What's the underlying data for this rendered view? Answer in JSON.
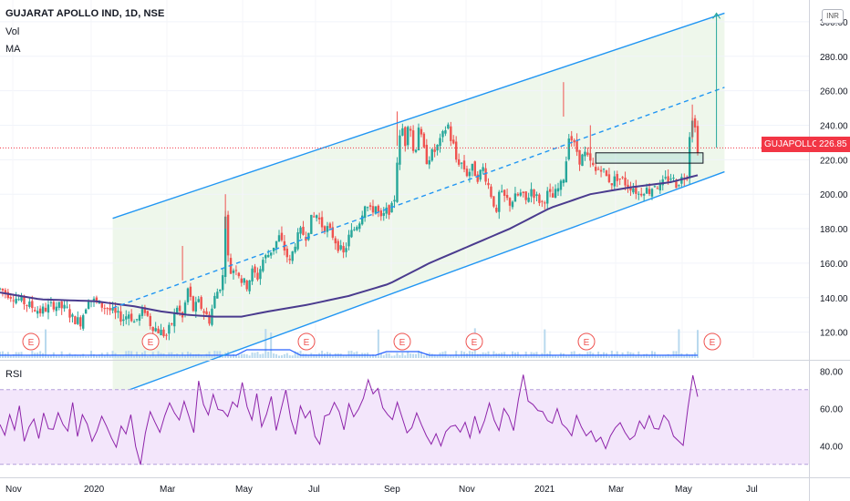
{
  "header": {
    "title": "GUJARAT APOLLO IND, 1D, NSE",
    "vol_label": "Vol",
    "ma_label": "MA",
    "rsi_label": "RSI",
    "currency": "INR"
  },
  "price_tag": {
    "symbol": "GUJAPOLLO",
    "value": "226.85"
  },
  "colors": {
    "up": "#26a69a",
    "down": "#ef5350",
    "channel": "#2196f3",
    "channel_fill": "#eaf5e6",
    "ma": "#4a3b8e",
    "rsi": "#8e24aa",
    "rsi_band": "#f3e6fb",
    "tag": "#f23645",
    "arrow": "#26a69a"
  },
  "chart_data": {
    "type": "candlestick",
    "price_axis": {
      "ticks": [
        120,
        140,
        160,
        180,
        200,
        220,
        240,
        260,
        280,
        300
      ],
      "range": [
        105,
        310
      ]
    },
    "rsi_axis": {
      "ticks": [
        40,
        60,
        80
      ],
      "range": [
        25,
        85
      ],
      "band": [
        30,
        70
      ]
    },
    "time_axis": [
      "Nov",
      "2020",
      "Mar",
      "May",
      "Jul",
      "Sep",
      "Nov",
      "2021",
      "Mar",
      "May",
      "Jul"
    ],
    "last_price": 226.85,
    "earnings_marker": "E",
    "earnings_count": 8,
    "ohlc_path": [
      [
        0,
        145
      ],
      [
        8,
        138
      ],
      [
        15,
        132
      ],
      [
        20,
        136
      ],
      [
        25,
        133
      ],
      [
        27,
        128
      ],
      [
        30,
        126
      ],
      [
        33,
        140
      ],
      [
        37,
        136
      ],
      [
        40,
        134
      ],
      [
        43,
        130
      ],
      [
        46,
        128
      ],
      [
        48,
        131
      ],
      [
        50,
        126
      ],
      [
        52,
        129
      ],
      [
        54,
        133
      ],
      [
        56,
        125
      ],
      [
        58,
        122
      ],
      [
        60,
        120
      ],
      [
        62,
        118
      ],
      [
        64,
        125
      ],
      [
        66,
        135
      ],
      [
        68,
        128
      ],
      [
        70,
        145
      ],
      [
        72,
        133
      ],
      [
        74,
        137
      ],
      [
        76,
        132
      ],
      [
        78,
        127
      ],
      [
        80,
        140
      ],
      [
        82,
        147
      ],
      [
        83,
        152
      ],
      [
        84,
        190
      ],
      [
        85,
        163
      ],
      [
        86,
        155
      ],
      [
        88,
        158
      ],
      [
        90,
        150
      ],
      [
        92,
        147
      ],
      [
        94,
        155
      ],
      [
        96,
        152
      ],
      [
        98,
        162
      ],
      [
        100,
        165
      ],
      [
        102,
        170
      ],
      [
        104,
        175
      ],
      [
        106,
        168
      ],
      [
        108,
        160
      ],
      [
        110,
        172
      ],
      [
        112,
        178
      ],
      [
        114,
        176
      ],
      [
        116,
        185
      ],
      [
        118,
        188
      ],
      [
        120,
        182
      ],
      [
        122,
        180
      ],
      [
        124,
        176
      ],
      [
        126,
        170
      ],
      [
        128,
        165
      ],
      [
        130,
        175
      ],
      [
        132,
        180
      ],
      [
        134,
        185
      ],
      [
        136,
        195
      ],
      [
        138,
        190
      ],
      [
        140,
        193
      ],
      [
        142,
        185
      ],
      [
        144,
        190
      ],
      [
        146,
        192
      ],
      [
        147,
        198
      ],
      [
        148,
        220
      ],
      [
        149,
        232
      ],
      [
        150,
        238
      ],
      [
        151,
        230
      ],
      [
        152,
        242
      ],
      [
        153,
        238
      ],
      [
        154,
        225
      ],
      [
        155,
        228
      ],
      [
        156,
        240
      ],
      [
        157,
        232
      ],
      [
        158,
        225
      ],
      [
        159,
        220
      ],
      [
        160,
        222
      ],
      [
        162,
        225
      ],
      [
        164,
        230
      ],
      [
        166,
        238
      ],
      [
        167,
        240
      ],
      [
        168,
        232
      ],
      [
        169,
        228
      ],
      [
        170,
        220
      ],
      [
        172,
        218
      ],
      [
        174,
        212
      ],
      [
        176,
        215
      ],
      [
        178,
        210
      ],
      [
        180,
        215
      ],
      [
        182,
        205
      ],
      [
        184,
        195
      ],
      [
        185,
        187
      ],
      [
        186,
        200
      ],
      [
        188,
        198
      ],
      [
        190,
        195
      ],
      [
        192,
        198
      ],
      [
        194,
        200
      ],
      [
        196,
        196
      ],
      [
        198,
        203
      ],
      [
        200,
        198
      ],
      [
        202,
        195
      ],
      [
        204,
        200
      ],
      [
        206,
        198
      ],
      [
        208,
        203
      ],
      [
        209,
        205
      ],
      [
        210,
        210
      ],
      [
        211,
        220
      ],
      [
        212,
        235
      ],
      [
        213,
        232
      ],
      [
        214,
        228
      ],
      [
        215,
        225
      ],
      [
        216,
        220
      ],
      [
        218,
        223
      ],
      [
        220,
        218
      ],
      [
        222,
        213
      ],
      [
        224,
        216
      ],
      [
        226,
        210
      ],
      [
        228,
        207
      ],
      [
        230,
        210
      ],
      [
        232,
        208
      ],
      [
        234,
        205
      ],
      [
        236,
        204
      ],
      [
        238,
        200
      ],
      [
        240,
        203
      ],
      [
        242,
        202
      ],
      [
        244,
        206
      ],
      [
        246,
        204
      ],
      [
        248,
        208
      ],
      [
        250,
        210
      ],
      [
        252,
        206
      ],
      [
        254,
        209
      ],
      [
        256,
        212
      ],
      [
        257,
        235
      ],
      [
        258,
        245
      ],
      [
        259,
        238
      ],
      [
        260,
        227
      ]
    ],
    "spikes": [
      [
        210,
        265
      ],
      [
        258,
        252
      ],
      [
        220,
        240
      ],
      [
        148,
        248
      ],
      [
        84,
        200
      ],
      [
        68,
        170
      ]
    ],
    "ma_path": [
      [
        0,
        143
      ],
      [
        15,
        139
      ],
      [
        35,
        138
      ],
      [
        50,
        135
      ],
      [
        60,
        132
      ],
      [
        70,
        130
      ],
      [
        80,
        129
      ],
      [
        90,
        129
      ],
      [
        100,
        132
      ],
      [
        115,
        136
      ],
      [
        130,
        141
      ],
      [
        145,
        148
      ],
      [
        160,
        160
      ],
      [
        175,
        170
      ],
      [
        190,
        180
      ],
      [
        205,
        192
      ],
      [
        220,
        200
      ],
      [
        235,
        204
      ],
      [
        250,
        207
      ],
      [
        260,
        211
      ]
    ],
    "channel": {
      "upper": [
        [
          42,
          186
        ],
        [
          270,
          305
        ]
      ],
      "mid": [
        [
          42,
          134
        ],
        [
          270,
          262
        ]
      ],
      "lower": [
        [
          42,
          83
        ],
        [
          270,
          213
        ]
      ]
    },
    "breakout_box": {
      "x0": 222,
      "x1": 262,
      "y0": 218,
      "y1": 224
    },
    "target_arrow": {
      "x": 267,
      "from": 227,
      "to": 305
    },
    "rsi_values": [
      50,
      46,
      56,
      48,
      60,
      44,
      52,
      55,
      43,
      58,
      50,
      47,
      59,
      53,
      49,
      62,
      46,
      55,
      51,
      44,
      48,
      57,
      52,
      45,
      38,
      50,
      45,
      55,
      41,
      30,
      45,
      60,
      52,
      48,
      55,
      62,
      58,
      53,
      65,
      55,
      48,
      75,
      62,
      55,
      66,
      60,
      57,
      54,
      63,
      59,
      72,
      60,
      55,
      68,
      52,
      58,
      65,
      50,
      60,
      70,
      56,
      48,
      60,
      54,
      58,
      46,
      42,
      55,
      58,
      65,
      58,
      50,
      62,
      55,
      60,
      66,
      76,
      68,
      70,
      62,
      56,
      52,
      64,
      55,
      46,
      50,
      58,
      52,
      44,
      40,
      48,
      38,
      46,
      50,
      52,
      48,
      54,
      46,
      56,
      48,
      52,
      62,
      55,
      50,
      60,
      56,
      50,
      66,
      78,
      65,
      63,
      58,
      60,
      55,
      52,
      58,
      53,
      50,
      46,
      55,
      50,
      45,
      48,
      42,
      46,
      38,
      44,
      50,
      52,
      46,
      42,
      44,
      52,
      48,
      55,
      50,
      48,
      55,
      52,
      47,
      43,
      40,
      62,
      76,
      68
    ]
  }
}
